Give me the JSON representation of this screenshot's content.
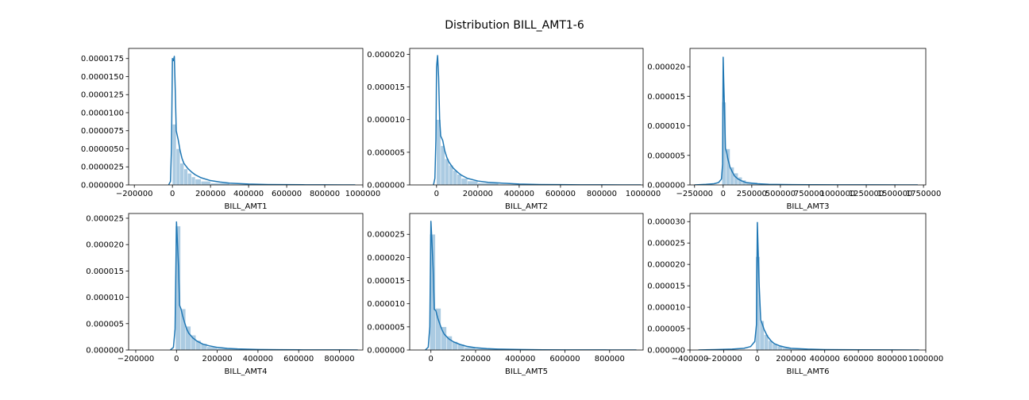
{
  "figure": {
    "title": "Distribution BILL_AMT1-6"
  },
  "colors": {
    "kde": "#1f77b4",
    "hist": "#a6c8e0",
    "axes": "#000000",
    "background": "#ffffff"
  },
  "chart_data": [
    {
      "type": "histogram+kde",
      "xlabel": "BILL_AMT1",
      "xlim": [
        -230000,
        1000000
      ],
      "ylim": [
        0,
        1.89e-05
      ],
      "xticks": [
        -200000,
        0,
        200000,
        400000,
        600000,
        800000,
        1000000
      ],
      "xtick_labels": [
        "−200000",
        "0",
        "200000",
        "400000",
        "600000",
        "800000",
        "1000000"
      ],
      "yticks": [
        0,
        2.5e-06,
        5e-06,
        7.5e-06,
        1e-05,
        1.25e-05,
        1.5e-05,
        1.75e-05
      ],
      "ytick_labels": [
        "0.0000000",
        "0.0000025",
        "0.0000050",
        "0.0000075",
        "0.0000100",
        "0.0000125",
        "0.0000150",
        "0.0000175"
      ],
      "bins": [
        {
          "x0": 0,
          "x1": 20000,
          "y": 8.4e-06
        },
        {
          "x0": 20000,
          "x1": 40000,
          "y": 5e-06
        },
        {
          "x0": 40000,
          "x1": 60000,
          "y": 3e-06
        },
        {
          "x0": 60000,
          "x1": 80000,
          "y": 2.2e-06
        },
        {
          "x0": 80000,
          "x1": 100000,
          "y": 1.6e-06
        },
        {
          "x0": 100000,
          "x1": 120000,
          "y": 1.1e-06
        },
        {
          "x0": 120000,
          "x1": 150000,
          "y": 8e-07
        },
        {
          "x0": 150000,
          "x1": 200000,
          "y": 5e-07
        },
        {
          "x0": 200000,
          "x1": 300000,
          "y": 2.5e-07
        },
        {
          "x0": 300000,
          "x1": 400000,
          "y": 1e-07
        }
      ],
      "kde_x": [
        -20000,
        -10000,
        -5000,
        0,
        5000,
        10000,
        15000,
        20000,
        30000,
        40000,
        50000,
        60000,
        80000,
        100000,
        120000,
        150000,
        200000,
        250000,
        300000,
        400000,
        500000,
        600000,
        700000,
        800000,
        900000,
        960000
      ],
      "kde_y": [
        0,
        5e-07,
        5e-06,
        1.75e-05,
        1.72e-05,
        1.78e-05,
        1.3e-05,
        7.5e-06,
        6.3e-06,
        4.8e-06,
        3.7e-06,
        3e-06,
        2.3e-06,
        1.8e-06,
        1.4e-06,
        1e-06,
        6e-07,
        4e-07,
        2.5e-07,
        1.2e-07,
        6e-08,
        4e-08,
        2e-08,
        1e-08,
        5e-09,
        0
      ]
    },
    {
      "type": "histogram+kde",
      "xlabel": "BILL_AMT2",
      "xlim": [
        -130000,
        1000000
      ],
      "ylim": [
        0,
        2.09e-05
      ],
      "xticks": [
        0,
        200000,
        400000,
        600000,
        800000,
        1000000
      ],
      "xtick_labels": [
        "0",
        "200000",
        "400000",
        "600000",
        "800000",
        "1000000"
      ],
      "yticks": [
        0,
        5e-06,
        1e-05,
        1.5e-05,
        2e-05
      ],
      "ytick_labels": [
        "0.000000",
        "0.000005",
        "0.000010",
        "0.000015",
        "0.000020"
      ],
      "bins": [
        {
          "x0": 0,
          "x1": 20000,
          "y": 1e-05
        },
        {
          "x0": 20000,
          "x1": 40000,
          "y": 6e-06
        },
        {
          "x0": 40000,
          "x1": 60000,
          "y": 4e-06
        },
        {
          "x0": 60000,
          "x1": 80000,
          "y": 3e-06
        },
        {
          "x0": 80000,
          "x1": 100000,
          "y": 2.2e-06
        },
        {
          "x0": 100000,
          "x1": 120000,
          "y": 1.6e-06
        },
        {
          "x0": 120000,
          "x1": 150000,
          "y": 1e-06
        },
        {
          "x0": 150000,
          "x1": 200000,
          "y": 6e-07
        },
        {
          "x0": 200000,
          "x1": 300000,
          "y": 3e-07
        },
        {
          "x0": 300000,
          "x1": 400000,
          "y": 1e-07
        }
      ],
      "kde_x": [
        -15000,
        -8000,
        -3000,
        0,
        5000,
        10000,
        15000,
        20000,
        30000,
        40000,
        50000,
        60000,
        80000,
        100000,
        120000,
        150000,
        200000,
        250000,
        300000,
        400000,
        500000,
        600000,
        700000,
        800000,
        900000,
        990000
      ],
      "kde_y": [
        0,
        1e-06,
        7e-06,
        1.8e-05,
        1.98e-05,
        1.65e-05,
        1e-05,
        7.5e-06,
        6.8e-06,
        5.2e-06,
        4.2e-06,
        3.5e-06,
        2.6e-06,
        2e-06,
        1.5e-06,
        1e-06,
        6e-07,
        4e-07,
        3e-07,
        1.3e-07,
        6e-08,
        4e-08,
        2e-08,
        1e-08,
        5e-09,
        0
      ]
    },
    {
      "type": "histogram+kde",
      "xlabel": "BILL_AMT3",
      "xlim": [
        -290000,
        1770000
      ],
      "ylim": [
        0,
        2.31e-05
      ],
      "xticks": [
        -250000,
        0,
        250000,
        500000,
        750000,
        1000000,
        1250000,
        1500000,
        1750000
      ],
      "xtick_labels": [
        "−250000",
        "0",
        "250000",
        "500000",
        "750000",
        "1000000",
        "1250000",
        "1500000",
        "1750000"
      ],
      "yticks": [
        0,
        5e-06,
        1e-05,
        1.5e-05,
        2e-05
      ],
      "ytick_labels": [
        "0.000000",
        "0.000005",
        "0.000010",
        "0.000015",
        "0.000020"
      ],
      "bins": [
        {
          "x0": -10000,
          "x1": 25000,
          "y": 1.4e-05
        },
        {
          "x0": 25000,
          "x1": 60000,
          "y": 6.1e-06
        },
        {
          "x0": 60000,
          "x1": 95000,
          "y": 3e-06
        },
        {
          "x0": 95000,
          "x1": 130000,
          "y": 2e-06
        },
        {
          "x0": 130000,
          "x1": 165000,
          "y": 1.3e-06
        },
        {
          "x0": 165000,
          "x1": 200000,
          "y": 8e-07
        },
        {
          "x0": 200000,
          "x1": 300000,
          "y": 4e-07
        },
        {
          "x0": 300000,
          "x1": 400000,
          "y": 1.5e-07
        }
      ],
      "kde_x": [
        -250000,
        -150000,
        -80000,
        -40000,
        -15000,
        -5000,
        0,
        5000,
        10000,
        20000,
        30000,
        40000,
        60000,
        80000,
        100000,
        130000,
        160000,
        200000,
        300000,
        400000,
        600000,
        800000,
        1000000,
        1300000,
        1600000,
        1700000
      ],
      "kde_y": [
        0,
        1e-07,
        2e-07,
        4e-07,
        1e-06,
        3.5e-06,
        2.16e-05,
        1.75e-05,
        1.4e-05,
        6.2e-06,
        5.5e-06,
        4.5e-06,
        3e-06,
        2.2e-06,
        1.5e-06,
        1e-06,
        7e-07,
        4e-07,
        2e-07,
        1e-07,
        5e-08,
        3e-08,
        2e-08,
        1e-08,
        5e-09,
        0
      ]
    },
    {
      "type": "histogram+kde",
      "xlabel": "BILL_AMT4",
      "xlim": [
        -235000,
        915000
      ],
      "ylim": [
        0,
        2.59e-05
      ],
      "xticks": [
        -200000,
        0,
        200000,
        400000,
        600000,
        800000
      ],
      "xtick_labels": [
        "−200000",
        "0",
        "200000",
        "400000",
        "600000",
        "800000"
      ],
      "yticks": [
        0,
        5e-06,
        1e-05,
        1.5e-05,
        2e-05,
        2.5e-05
      ],
      "ytick_labels": [
        "0.000000",
        "0.000005",
        "0.000010",
        "0.000015",
        "0.000020",
        "0.000025"
      ],
      "bins": [
        {
          "x0": -5000,
          "x1": 20000,
          "y": 2.35e-05
        },
        {
          "x0": 20000,
          "x1": 45000,
          "y": 7.8e-06
        },
        {
          "x0": 45000,
          "x1": 70000,
          "y": 4.5e-06
        },
        {
          "x0": 70000,
          "x1": 95000,
          "y": 2.8e-06
        },
        {
          "x0": 95000,
          "x1": 120000,
          "y": 1.8e-06
        },
        {
          "x0": 120000,
          "x1": 150000,
          "y": 1.2e-06
        },
        {
          "x0": 150000,
          "x1": 200000,
          "y": 6e-07
        },
        {
          "x0": 200000,
          "x1": 300000,
          "y": 3e-07
        },
        {
          "x0": 300000,
          "x1": 400000,
          "y": 1e-07
        }
      ],
      "kde_x": [
        -30000,
        -15000,
        -7000,
        0,
        4000,
        10000,
        15000,
        22000,
        30000,
        40000,
        50000,
        60000,
        80000,
        100000,
        130000,
        160000,
        200000,
        250000,
        300000,
        400000,
        500000,
        600000,
        700000,
        800000,
        890000
      ],
      "kde_y": [
        0,
        5e-07,
        4e-06,
        2.43e-05,
        2.1e-05,
        1.58e-05,
        8.5e-06,
        7.8e-06,
        6.5e-06,
        5.2e-06,
        4e-06,
        3.2e-06,
        2.3e-06,
        1.7e-06,
        1.1e-06,
        8e-07,
        5e-07,
        3e-07,
        2e-07,
        1e-07,
        5e-08,
        3e-08,
        2e-08,
        1e-08,
        0
      ]
    },
    {
      "type": "histogram+kde",
      "xlabel": "BILL_AMT5",
      "xlim": [
        -95000,
        950000
      ],
      "ylim": [
        0,
        2.95e-05
      ],
      "xticks": [
        0,
        200000,
        400000,
        600000,
        800000
      ],
      "xtick_labels": [
        "0",
        "200000",
        "400000",
        "600000",
        "800000"
      ],
      "yticks": [
        0,
        5e-06,
        1e-05,
        1.5e-05,
        2e-05,
        2.5e-05
      ],
      "ytick_labels": [
        "0.000000",
        "0.000005",
        "0.000010",
        "0.000015",
        "0.000020",
        "0.000025"
      ],
      "bins": [
        {
          "x0": -5000,
          "x1": 20000,
          "y": 2.5e-05
        },
        {
          "x0": 20000,
          "x1": 45000,
          "y": 9e-06
        },
        {
          "x0": 45000,
          "x1": 70000,
          "y": 5e-06
        },
        {
          "x0": 70000,
          "x1": 95000,
          "y": 3e-06
        },
        {
          "x0": 95000,
          "x1": 120000,
          "y": 1.8e-06
        },
        {
          "x0": 120000,
          "x1": 150000,
          "y": 1.2e-06
        },
        {
          "x0": 150000,
          "x1": 200000,
          "y": 6e-07
        },
        {
          "x0": 200000,
          "x1": 300000,
          "y": 3e-07
        },
        {
          "x0": 300000,
          "x1": 400000,
          "y": 1e-07
        }
      ],
      "kde_x": [
        -25000,
        -12000,
        -5000,
        0,
        4000,
        10000,
        15000,
        22000,
        30000,
        40000,
        50000,
        60000,
        80000,
        100000,
        130000,
        160000,
        200000,
        250000,
        300000,
        400000,
        500000,
        600000,
        700000,
        800000,
        920000
      ],
      "kde_y": [
        0,
        6e-07,
        5e-06,
        2.78e-05,
        2.4e-05,
        1.75e-05,
        8.8e-06,
        8.5e-06,
        7e-06,
        5.6e-06,
        4.3e-06,
        3.4e-06,
        2.4e-06,
        1.8e-06,
        1.2e-06,
        8e-07,
        5e-07,
        3e-07,
        2e-07,
        1e-07,
        5e-08,
        3e-08,
        2e-08,
        1e-08,
        0
      ]
    },
    {
      "type": "histogram+kde",
      "xlabel": "BILL_AMT6",
      "xlim": [
        -400000,
        1000000
      ],
      "ylim": [
        0,
        3.19e-05
      ],
      "xticks": [
        -400000,
        -200000,
        0,
        200000,
        400000,
        600000,
        800000,
        1000000
      ],
      "xtick_labels": [
        "−400000",
        "−200000",
        "0",
        "200000",
        "400000",
        "600000",
        "800000",
        "1000000"
      ],
      "yticks": [
        0,
        5e-06,
        1e-05,
        1.5e-05,
        2e-05,
        2.5e-05,
        3e-05
      ],
      "ytick_labels": [
        "0.000000",
        "0.000005",
        "0.000010",
        "0.000015",
        "0.000020",
        "0.000025",
        "0.000030"
      ],
      "bins": [
        {
          "x0": -10000,
          "x1": 15000,
          "y": 2.18e-05
        },
        {
          "x0": 15000,
          "x1": 40000,
          "y": 6.8e-06
        },
        {
          "x0": 40000,
          "x1": 65000,
          "y": 3.6e-06
        },
        {
          "x0": 65000,
          "x1": 90000,
          "y": 2.2e-06
        },
        {
          "x0": 90000,
          "x1": 120000,
          "y": 1.4e-06
        },
        {
          "x0": 120000,
          "x1": 150000,
          "y": 9e-07
        },
        {
          "x0": 150000,
          "x1": 200000,
          "y": 5e-07
        },
        {
          "x0": 200000,
          "x1": 300000,
          "y": 2.5e-07
        }
      ],
      "kde_x": [
        -350000,
        -250000,
        -150000,
        -80000,
        -40000,
        -15000,
        -5000,
        0,
        5000,
        10000,
        20000,
        30000,
        40000,
        60000,
        80000,
        100000,
        130000,
        160000,
        200000,
        300000,
        400000,
        600000,
        800000,
        960000
      ],
      "kde_y": [
        0,
        1e-07,
        2e-07,
        4e-07,
        8e-07,
        2e-06,
        6e-06,
        2.98e-05,
        2.3e-05,
        1.6e-05,
        7e-06,
        6e-06,
        4.8e-06,
        3.2e-06,
        2.2e-06,
        1.5e-06,
        1e-06,
        7e-07,
        4e-07,
        2e-07,
        1e-07,
        4e-08,
        2e-08,
        0
      ]
    }
  ]
}
